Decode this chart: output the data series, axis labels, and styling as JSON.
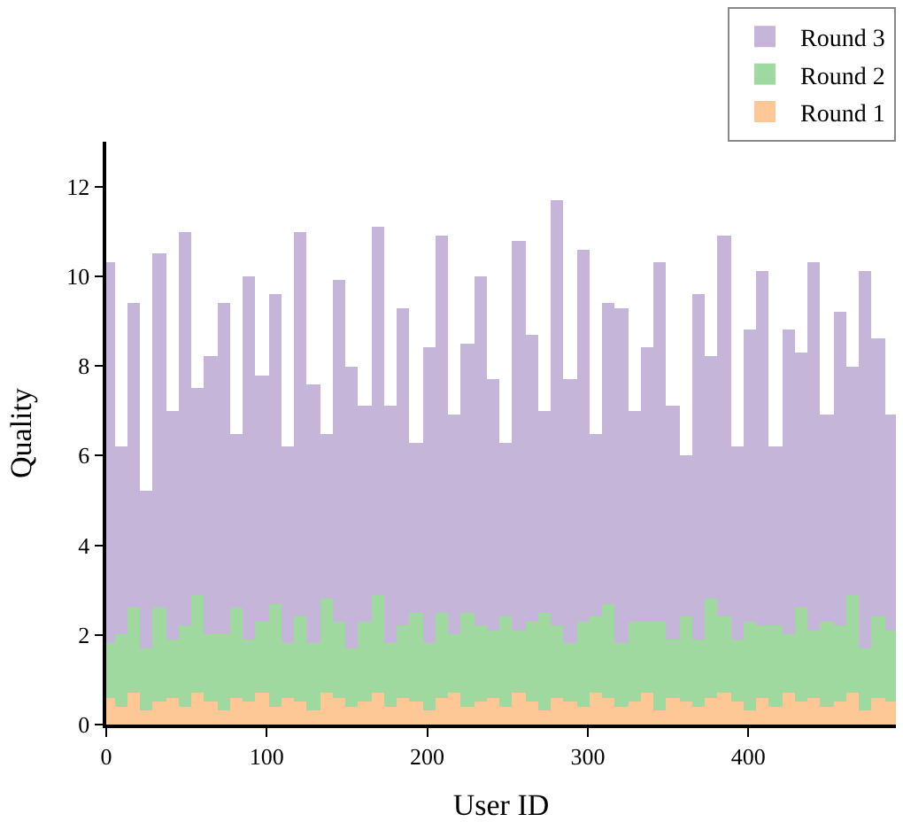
{
  "chart_data": {
    "type": "bar",
    "stacked": true,
    "xlabel": "User ID",
    "ylabel": "Quality",
    "x": [
      1,
      9,
      17,
      25,
      33,
      41,
      49,
      57,
      65,
      73,
      81,
      89,
      97,
      105,
      113,
      121,
      129,
      137,
      145,
      153,
      161,
      169,
      177,
      185,
      193,
      201,
      209,
      217,
      225,
      233,
      241,
      249,
      257,
      265,
      273,
      281,
      289,
      297,
      305,
      313,
      321,
      329,
      337,
      345,
      353,
      361,
      369,
      377,
      385,
      393,
      401,
      409,
      417,
      425,
      433,
      441,
      449,
      457,
      465,
      473,
      481,
      489
    ],
    "series": [
      {
        "name": "Round 1",
        "color": "#fdc895",
        "values": [
          0.6,
          0.4,
          0.7,
          0.3,
          0.5,
          0.6,
          0.4,
          0.7,
          0.5,
          0.3,
          0.6,
          0.5,
          0.7,
          0.4,
          0.6,
          0.5,
          0.3,
          0.7,
          0.6,
          0.4,
          0.5,
          0.7,
          0.4,
          0.6,
          0.5,
          0.3,
          0.6,
          0.7,
          0.4,
          0.5,
          0.6,
          0.4,
          0.7,
          0.5,
          0.3,
          0.6,
          0.5,
          0.4,
          0.7,
          0.6,
          0.4,
          0.5,
          0.7,
          0.3,
          0.6,
          0.5,
          0.4,
          0.6,
          0.7,
          0.5,
          0.3,
          0.6,
          0.4,
          0.7,
          0.5,
          0.6,
          0.4,
          0.5,
          0.7,
          0.3,
          0.6,
          0.5
        ]
      },
      {
        "name": "Round 2",
        "color": "#a0d9a0",
        "values": [
          1.2,
          1.6,
          1.9,
          1.4,
          2.1,
          1.3,
          1.8,
          2.2,
          1.5,
          1.7,
          2.0,
          1.4,
          1.6,
          2.3,
          1.2,
          1.9,
          1.5,
          2.1,
          1.7,
          1.3,
          1.8,
          2.2,
          1.4,
          1.6,
          2.0,
          1.5,
          1.9,
          1.3,
          2.1,
          1.7,
          1.5,
          2.0,
          1.4,
          1.8,
          2.2,
          1.6,
          1.3,
          1.9,
          1.7,
          2.1,
          1.4,
          1.8,
          1.6,
          2.0,
          1.3,
          1.9,
          1.5,
          2.2,
          1.7,
          1.4,
          2.0,
          1.6,
          1.8,
          1.3,
          2.1,
          1.5,
          1.9,
          1.7,
          2.2,
          1.4,
          1.8,
          1.6
        ]
      },
      {
        "name": "Round 3",
        "color": "#c5b5d9",
        "values": [
          8.5,
          4.2,
          6.8,
          3.5,
          7.9,
          5.1,
          8.8,
          4.6,
          6.2,
          7.4,
          3.9,
          8.1,
          5.5,
          6.9,
          4.4,
          8.6,
          5.8,
          3.7,
          7.6,
          6.3,
          4.8,
          8.2,
          5.3,
          7.1,
          3.8,
          6.6,
          8.4,
          4.9,
          6.0,
          7.8,
          5.6,
          3.9,
          8.7,
          6.4,
          4.5,
          9.5,
          5.9,
          8.3,
          4.1,
          6.7,
          7.5,
          4.7,
          6.1,
          8.0,
          5.2,
          3.6,
          7.7,
          5.4,
          8.5,
          4.3,
          6.5,
          7.9,
          4.0,
          6.8,
          5.7,
          8.2,
          4.6,
          7.0,
          5.1,
          8.4,
          6.2,
          4.8
        ]
      }
    ],
    "xlim": [
      0,
      492
    ],
    "xticks": [
      0,
      100,
      200,
      300,
      400
    ],
    "ylim": [
      0,
      13
    ],
    "yticks": [
      0,
      2,
      4,
      6,
      8,
      10,
      12
    ],
    "legend": "top right"
  }
}
